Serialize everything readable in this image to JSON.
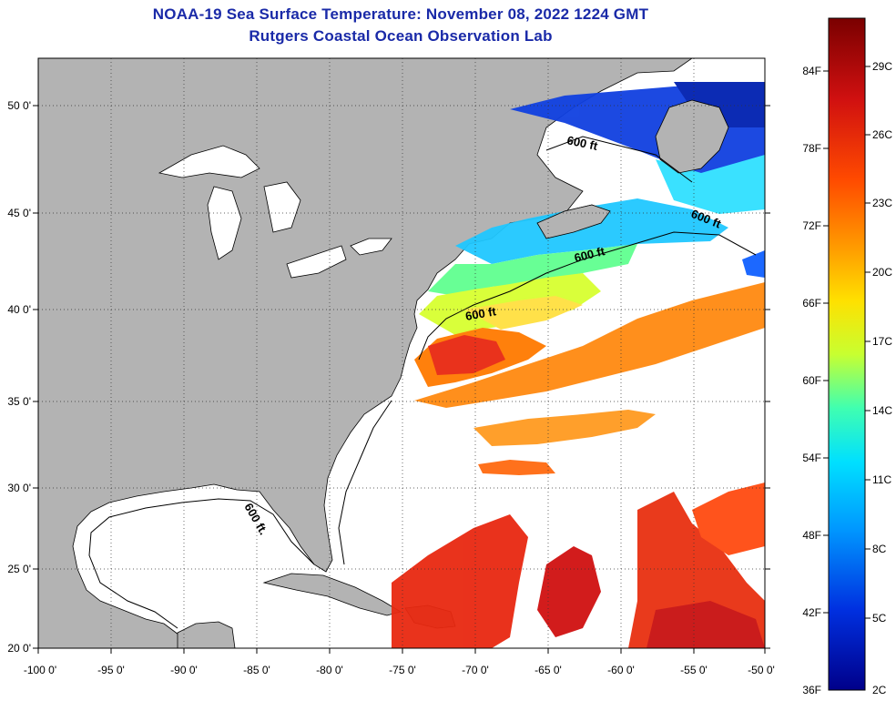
{
  "header": {
    "title": "NOAA-19 Sea Surface Temperature:  November 08, 2022 1224 GMT",
    "subtitle": "Rutgers Coastal Ocean Observation Lab"
  },
  "map": {
    "lat_labels": [
      "50 0'",
      "45 0'",
      "40 0'",
      "35 0'",
      "30 0'",
      "25 0'",
      "20 0'"
    ],
    "lon_labels": [
      "-100 0'",
      "-95 0'",
      "-90 0'",
      "-85 0'",
      "-80 0'",
      "-75 0'",
      "-70 0'",
      "-65 0'",
      "-60 0'",
      "-55 0'",
      "-50 0'"
    ],
    "isobath_label": "600 ft",
    "isobath_label_gulf": "600 ft.",
    "land_color": "#b3b3b3",
    "no_data_color": "#ffffff"
  },
  "colorbar": {
    "f_labels": [
      "84F",
      "78F",
      "72F",
      "66F",
      "60F",
      "54F",
      "48F",
      "42F",
      "36F"
    ],
    "c_labels": [
      "29C",
      "26C",
      "23C",
      "20C",
      "17C",
      "14C",
      "11C",
      "8C",
      "5C",
      "2C"
    ],
    "colors": [
      "#7a0000",
      "#c81010",
      "#ff3a00",
      "#ff8a00",
      "#ffd000",
      "#d8ff20",
      "#60ff80",
      "#00e0ff",
      "#0090ff",
      "#0030e0",
      "#00008a"
    ]
  }
}
